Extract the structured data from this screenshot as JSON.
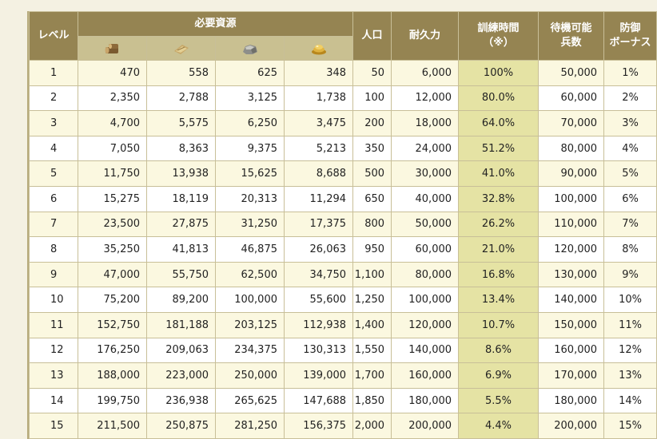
{
  "headers": {
    "level": "レベル",
    "resources": "必要資源",
    "population": "人口",
    "durability": "耐久力",
    "training_time": "訓練時間\n（※）",
    "standby": "待機可能\n兵数",
    "defense": "防御\nボーナス"
  },
  "resource_icons": [
    "wood-icon",
    "food-icon",
    "stone-icon",
    "gold-icon"
  ],
  "colors": {
    "header_bg": "#958452",
    "icon_row_bg": "#c9c091",
    "odd_row_bg": "#fbf8e0",
    "even_row_bg": "#ffffff",
    "training_col_bg": "#e5e3a4",
    "page_bg": "#f4f1e2"
  },
  "rows": [
    [
      "1",
      "470",
      "558",
      "625",
      "348",
      "50",
      "6,000",
      "100%",
      "50,000",
      "1%"
    ],
    [
      "2",
      "2,350",
      "2,788",
      "3,125",
      "1,738",
      "100",
      "12,000",
      "80.0%",
      "60,000",
      "2%"
    ],
    [
      "3",
      "4,700",
      "5,575",
      "6,250",
      "3,475",
      "200",
      "18,000",
      "64.0%",
      "70,000",
      "3%"
    ],
    [
      "4",
      "7,050",
      "8,363",
      "9,375",
      "5,213",
      "350",
      "24,000",
      "51.2%",
      "80,000",
      "4%"
    ],
    [
      "5",
      "11,750",
      "13,938",
      "15,625",
      "8,688",
      "500",
      "30,000",
      "41.0%",
      "90,000",
      "5%"
    ],
    [
      "6",
      "15,275",
      "18,119",
      "20,313",
      "11,294",
      "650",
      "40,000",
      "32.8%",
      "100,000",
      "6%"
    ],
    [
      "7",
      "23,500",
      "27,875",
      "31,250",
      "17,375",
      "800",
      "50,000",
      "26.2%",
      "110,000",
      "7%"
    ],
    [
      "8",
      "35,250",
      "41,813",
      "46,875",
      "26,063",
      "950",
      "60,000",
      "21.0%",
      "120,000",
      "8%"
    ],
    [
      "9",
      "47,000",
      "55,750",
      "62,500",
      "34,750",
      "1,100",
      "80,000",
      "16.8%",
      "130,000",
      "9%"
    ],
    [
      "10",
      "75,200",
      "89,200",
      "100,000",
      "55,600",
      "1,250",
      "100,000",
      "13.4%",
      "140,000",
      "10%"
    ],
    [
      "11",
      "152,750",
      "181,188",
      "203,125",
      "112,938",
      "1,400",
      "120,000",
      "10.7%",
      "150,000",
      "11%"
    ],
    [
      "12",
      "176,250",
      "209,063",
      "234,375",
      "130,313",
      "1,550",
      "140,000",
      "8.6%",
      "160,000",
      "12%"
    ],
    [
      "13",
      "188,000",
      "223,000",
      "250,000",
      "139,000",
      "1,700",
      "160,000",
      "6.9%",
      "170,000",
      "13%"
    ],
    [
      "14",
      "199,750",
      "236,938",
      "265,625",
      "147,688",
      "1,850",
      "180,000",
      "5.5%",
      "180,000",
      "14%"
    ],
    [
      "15",
      "211,500",
      "250,875",
      "281,250",
      "156,375",
      "2,000",
      "200,000",
      "4.4%",
      "200,000",
      "15%"
    ]
  ]
}
